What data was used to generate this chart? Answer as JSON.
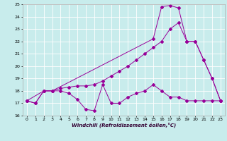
{
  "xlabel": "Windchill (Refroidissement éolien,°C)",
  "xlim": [
    -0.5,
    23.5
  ],
  "ylim": [
    16,
    25
  ],
  "xticks": [
    0,
    1,
    2,
    3,
    4,
    5,
    6,
    7,
    8,
    9,
    10,
    11,
    12,
    13,
    14,
    15,
    16,
    17,
    18,
    19,
    20,
    21,
    22,
    23
  ],
  "yticks": [
    16,
    17,
    18,
    19,
    20,
    21,
    22,
    23,
    24,
    25
  ],
  "bg_color": "#c8ecec",
  "line_color": "#990099",
  "grid_color": "#ffffff",
  "line1_x": [
    0,
    1,
    2,
    3,
    4,
    5,
    6,
    7,
    8,
    9,
    10,
    11,
    12,
    13,
    14,
    15,
    16,
    17,
    18,
    19,
    20,
    21,
    22,
    23
  ],
  "line1_y": [
    17.2,
    17.0,
    18.0,
    18.0,
    18.0,
    17.8,
    17.3,
    16.5,
    16.4,
    18.5,
    17.0,
    17.0,
    17.5,
    17.8,
    18.0,
    18.5,
    18.0,
    17.5,
    17.5,
    17.2,
    17.2,
    17.2,
    17.2,
    17.2
  ],
  "line2_x": [
    0,
    1,
    2,
    3,
    4,
    5,
    6,
    7,
    8,
    9,
    10,
    11,
    12,
    13,
    14,
    15,
    16,
    17,
    18,
    19,
    20,
    21,
    22,
    23
  ],
  "line2_y": [
    17.2,
    17.0,
    18.0,
    18.0,
    18.2,
    18.3,
    18.4,
    18.4,
    18.5,
    18.8,
    19.2,
    19.6,
    20.0,
    20.5,
    21.0,
    21.5,
    22.0,
    23.0,
    23.5,
    22.0,
    22.0,
    20.5,
    19.0,
    17.2
  ],
  "line3_x": [
    0,
    2,
    3,
    15,
    16,
    17,
    18,
    19,
    20,
    21,
    22,
    23
  ],
  "line3_y": [
    17.2,
    18.0,
    18.0,
    22.2,
    24.8,
    24.9,
    24.7,
    22.0,
    22.0,
    20.5,
    19.0,
    17.2
  ]
}
